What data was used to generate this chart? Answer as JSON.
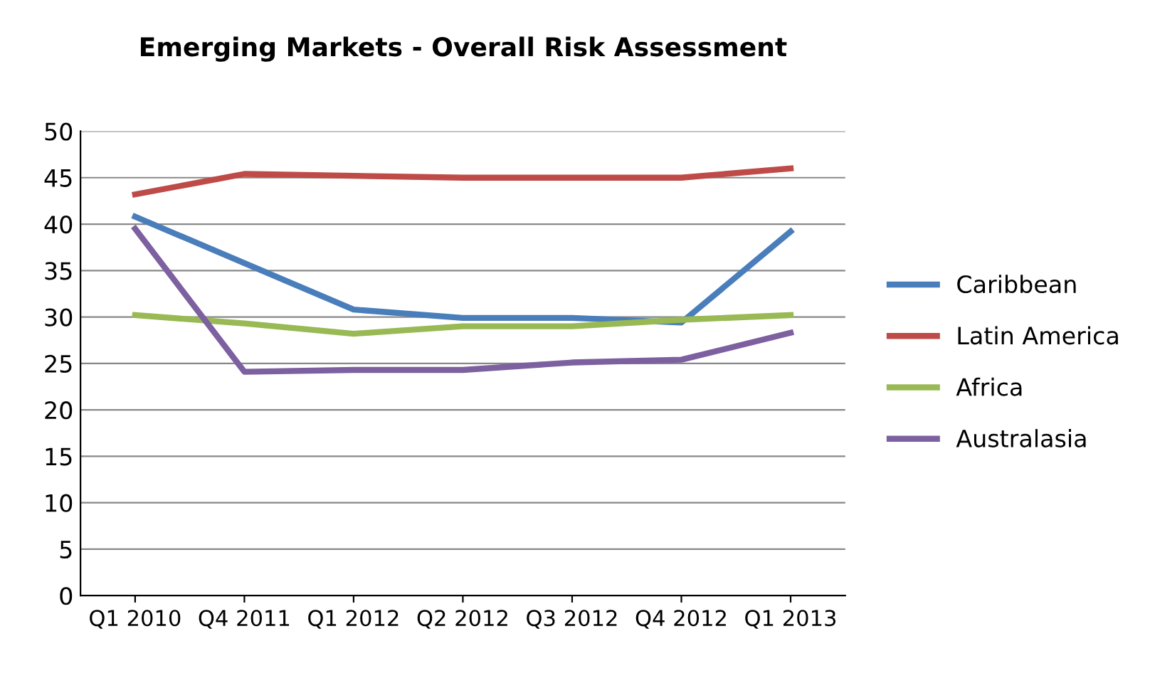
{
  "chart_data": {
    "type": "line",
    "title": "Emerging Markets - Overall Risk Assessment",
    "categories": [
      "Q1 2010",
      "Q4 2011",
      "Q1 2012",
      "Q2 2012",
      "Q3 2012",
      "Q4 2012",
      "Q1 2013"
    ],
    "series": [
      {
        "name": "Caribbean",
        "color": "#4a7ebb",
        "values": [
          40.8,
          35.8,
          30.8,
          29.9,
          29.9,
          29.4,
          39.2
        ]
      },
      {
        "name": "Latin America",
        "color": "#be4b48",
        "values": [
          43.2,
          45.4,
          45.2,
          45.0,
          45.0,
          45.0,
          46.0
        ]
      },
      {
        "name": "Africa",
        "color": "#98b954",
        "values": [
          30.2,
          29.3,
          28.2,
          29.0,
          29.0,
          29.7,
          30.2
        ]
      },
      {
        "name": "Australasia",
        "color": "#7d60a0",
        "values": [
          39.5,
          24.1,
          24.3,
          24.3,
          25.1,
          25.4,
          28.3
        ]
      }
    ],
    "ylim": [
      0,
      50
    ],
    "yticks": [
      0,
      5,
      10,
      15,
      20,
      25,
      30,
      35,
      40,
      45,
      50
    ],
    "grid": "y",
    "legend": "right",
    "marker": "none",
    "line_style": "solid"
  }
}
